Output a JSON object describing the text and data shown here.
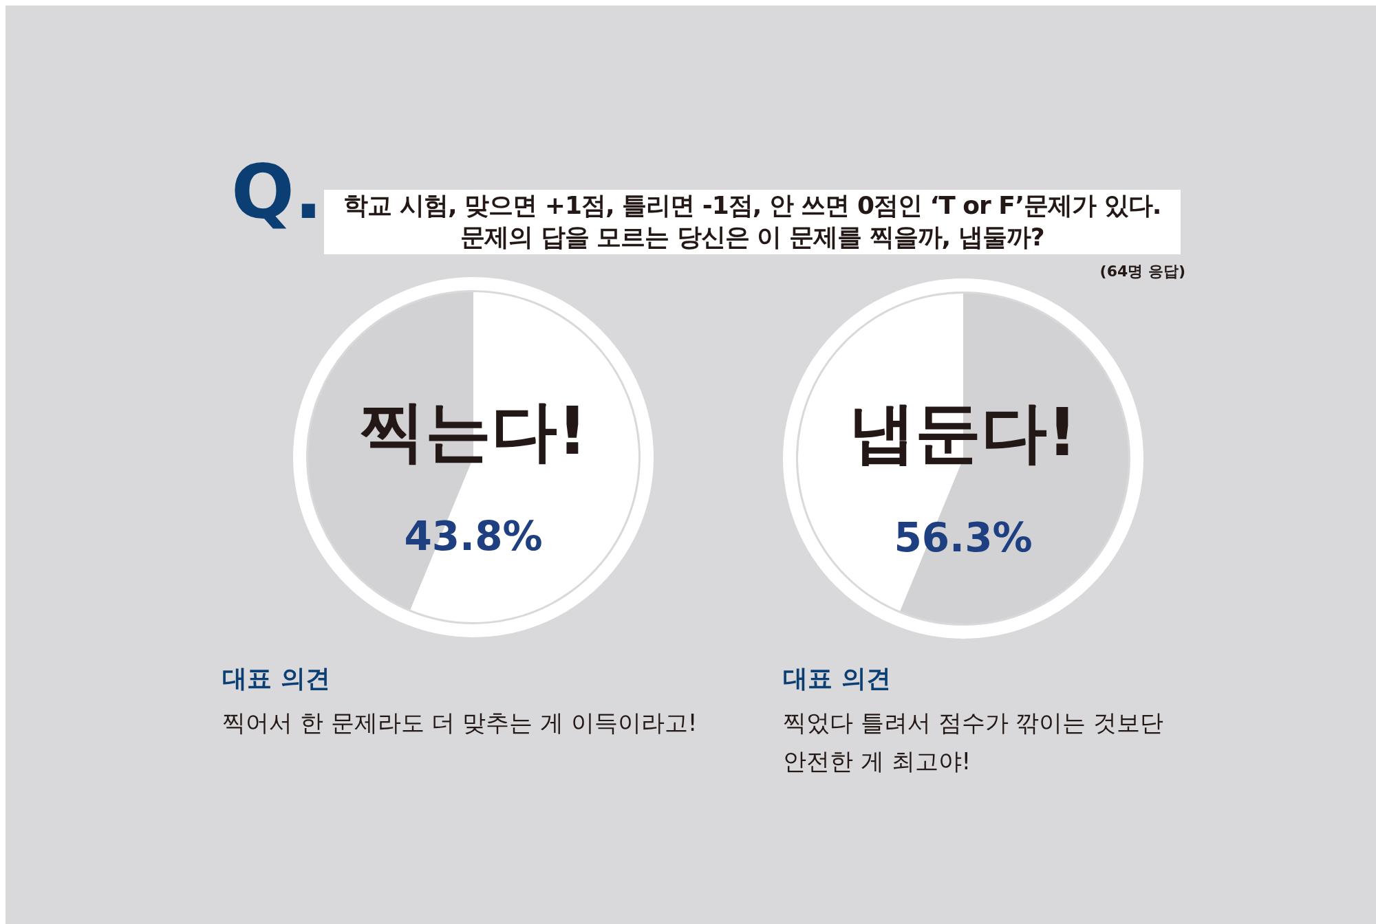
{
  "chart_data": [
    {
      "type": "pie",
      "title": "Q.",
      "subtitle": "학교 시험, 맞으면 +1점, 틀리면 -1점, 안 쓰면 0점인 ‘T or F’문제가 있다.\n문제의 답을 모르는 당신은 이 문제를 찍을까, 냅둘까?",
      "categories": [
        null,
        "찍는다!"
      ],
      "values": [
        56.3,
        43.8
      ],
      "colors": [
        "#ffffff",
        "#d2d2d4"
      ],
      "value_labels": [
        null,
        "43.8%"
      ],
      "legend": false,
      "annotations": [
        "(64명 응답)",
        "대표 의견",
        "찍어서 한 문제라도 더 맞추는 게 이득이라고!"
      ]
    },
    {
      "type": "pie",
      "categories": [
        "냅둔다!",
        null
      ],
      "values": [
        56.3,
        43.8
      ],
      "colors": [
        "#d2d2d4",
        "#ffffff"
      ],
      "value_labels": [
        "56.3%",
        null
      ],
      "legend": false,
      "annotations": [
        "대표 의견",
        "찍었다 틀려서 점수가 깎이는 것보단\n안전한 게 최고야!"
      ]
    }
  ]
}
